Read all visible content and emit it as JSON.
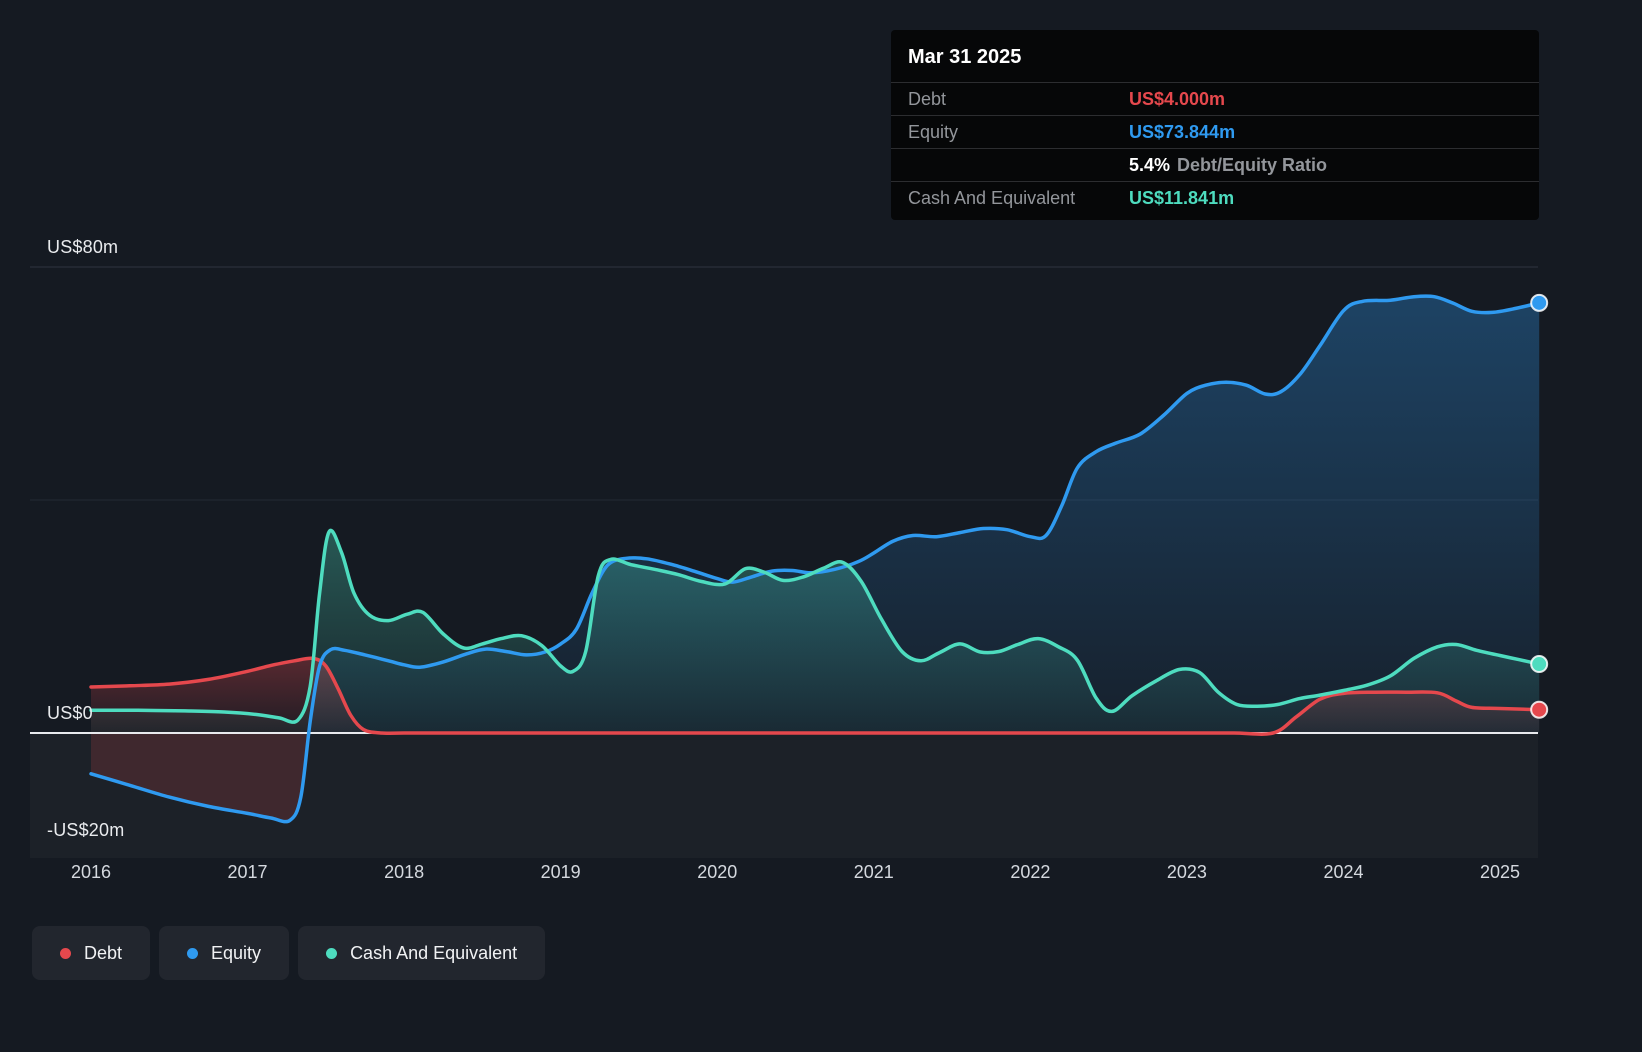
{
  "colors": {
    "background": "#151a22",
    "debt": "#e5484d",
    "equity": "#2f9af0",
    "cash": "#4edcbf",
    "negative_equity_fill": "#e5484d",
    "zero_line": "#e8eaee",
    "gridline_major": "#2e3440",
    "gridline_minor": "#232934",
    "tooltip_bg": "#060708"
  },
  "tooltip": {
    "date": "Mar 31 2025",
    "debt_label": "Debt",
    "debt_value": "US$4.000m",
    "equity_label": "Equity",
    "equity_value": "US$73.844m",
    "ratio_value": "5.4%",
    "ratio_label": "Debt/Equity Ratio",
    "cash_label": "Cash And Equivalent",
    "cash_value": "US$11.841m"
  },
  "chart_data": {
    "type": "area",
    "unit": "US$m",
    "grid": "horizontal",
    "legend_position": "bottom-left",
    "x_ticks": [
      2016,
      2017,
      2018,
      2019,
      2020,
      2021,
      2022,
      2023,
      2024,
      2025
    ],
    "x_range": [
      2016,
      2025.25
    ],
    "ylim": [
      -25,
      85
    ],
    "y_gridlines_major": [
      80
    ],
    "y_gridlines_minor": [
      40
    ],
    "y_labels": [
      {
        "value": 80,
        "text": "US$80m"
      },
      {
        "value": 0,
        "text": "US$0"
      },
      {
        "value": -20,
        "text": "-US$20m"
      }
    ],
    "series": [
      {
        "name": "Debt",
        "color": "#e5484d",
        "points": [
          [
            2016,
            7.9
          ],
          [
            2016.25,
            8.1
          ],
          [
            2016.5,
            8.4
          ],
          [
            2016.75,
            9.2
          ],
          [
            2017,
            10.6
          ],
          [
            2017.15,
            11.6
          ],
          [
            2017.3,
            12.4
          ],
          [
            2017.42,
            12.8
          ],
          [
            2017.5,
            11.5
          ],
          [
            2017.58,
            7.5
          ],
          [
            2017.66,
            3
          ],
          [
            2017.74,
            0.6
          ],
          [
            2017.85,
            0
          ],
          [
            2018,
            0
          ],
          [
            2018.5,
            0
          ],
          [
            2019,
            0
          ],
          [
            2019.5,
            0
          ],
          [
            2020,
            0
          ],
          [
            2020.5,
            0
          ],
          [
            2021,
            0
          ],
          [
            2021.5,
            0
          ],
          [
            2022,
            0
          ],
          [
            2022.5,
            0
          ],
          [
            2023,
            0
          ],
          [
            2023.3,
            0
          ],
          [
            2023.55,
            0
          ],
          [
            2023.7,
            2.8
          ],
          [
            2023.85,
            5.8
          ],
          [
            2024,
            6.8
          ],
          [
            2024.2,
            7
          ],
          [
            2024.4,
            7
          ],
          [
            2024.6,
            6.9
          ],
          [
            2024.72,
            5.5
          ],
          [
            2024.82,
            4.4
          ],
          [
            2025,
            4.2
          ],
          [
            2025.25,
            4
          ]
        ]
      },
      {
        "name": "Equity",
        "color": "#2f9af0",
        "points": [
          [
            2016,
            -7
          ],
          [
            2016.25,
            -9
          ],
          [
            2016.5,
            -11
          ],
          [
            2016.75,
            -12.6
          ],
          [
            2017,
            -13.8
          ],
          [
            2017.15,
            -14.6
          ],
          [
            2017.27,
            -15
          ],
          [
            2017.34,
            -11
          ],
          [
            2017.4,
            2
          ],
          [
            2017.46,
            11.5
          ],
          [
            2017.53,
            14.3
          ],
          [
            2017.62,
            14.2
          ],
          [
            2017.75,
            13.4
          ],
          [
            2017.9,
            12.4
          ],
          [
            2018,
            11.7
          ],
          [
            2018.1,
            11.3
          ],
          [
            2018.25,
            12.2
          ],
          [
            2018.4,
            13.6
          ],
          [
            2018.52,
            14.4
          ],
          [
            2018.65,
            14
          ],
          [
            2018.78,
            13.4
          ],
          [
            2018.9,
            13.9
          ],
          [
            2019,
            15.3
          ],
          [
            2019.1,
            17.8
          ],
          [
            2019.2,
            24
          ],
          [
            2019.3,
            28.8
          ],
          [
            2019.42,
            30
          ],
          [
            2019.55,
            29.9
          ],
          [
            2019.7,
            29
          ],
          [
            2019.85,
            27.8
          ],
          [
            2020,
            26.5
          ],
          [
            2020.1,
            25.9
          ],
          [
            2020.22,
            26.8
          ],
          [
            2020.35,
            27.8
          ],
          [
            2020.48,
            27.9
          ],
          [
            2020.6,
            27.5
          ],
          [
            2020.75,
            28.1
          ],
          [
            2020.9,
            29.4
          ],
          [
            2021,
            30.9
          ],
          [
            2021.12,
            32.9
          ],
          [
            2021.25,
            33.9
          ],
          [
            2021.4,
            33.7
          ],
          [
            2021.55,
            34.4
          ],
          [
            2021.7,
            35.1
          ],
          [
            2021.85,
            34.9
          ],
          [
            2022,
            33.7
          ],
          [
            2022.1,
            33.9
          ],
          [
            2022.2,
            39
          ],
          [
            2022.3,
            45.5
          ],
          [
            2022.42,
            48.3
          ],
          [
            2022.55,
            49.8
          ],
          [
            2022.7,
            51.3
          ],
          [
            2022.85,
            54.5
          ],
          [
            2023,
            58.3
          ],
          [
            2023.12,
            59.7
          ],
          [
            2023.25,
            60.2
          ],
          [
            2023.38,
            59.7
          ],
          [
            2023.5,
            58.2
          ],
          [
            2023.6,
            58.6
          ],
          [
            2023.72,
            61.5
          ],
          [
            2023.85,
            66.5
          ],
          [
            2024,
            72.5
          ],
          [
            2024.12,
            74.1
          ],
          [
            2024.3,
            74.3
          ],
          [
            2024.45,
            74.9
          ],
          [
            2024.58,
            74.9
          ],
          [
            2024.7,
            73.8
          ],
          [
            2024.82,
            72.4
          ],
          [
            2024.95,
            72.2
          ],
          [
            2025.1,
            72.9
          ],
          [
            2025.25,
            73.844
          ]
        ]
      },
      {
        "name": "Cash And Equivalent",
        "color": "#4edcbf",
        "points": [
          [
            2016,
            3.9
          ],
          [
            2016.3,
            3.9
          ],
          [
            2016.6,
            3.8
          ],
          [
            2016.85,
            3.6
          ],
          [
            2017.05,
            3.2
          ],
          [
            2017.2,
            2.6
          ],
          [
            2017.32,
            2.2
          ],
          [
            2017.4,
            8
          ],
          [
            2017.46,
            24
          ],
          [
            2017.52,
            34.5
          ],
          [
            2017.6,
            31
          ],
          [
            2017.68,
            24
          ],
          [
            2017.78,
            20.2
          ],
          [
            2017.9,
            19.3
          ],
          [
            2018.02,
            20.4
          ],
          [
            2018.12,
            20.7
          ],
          [
            2018.25,
            17
          ],
          [
            2018.38,
            14.6
          ],
          [
            2018.5,
            15.3
          ],
          [
            2018.62,
            16.2
          ],
          [
            2018.75,
            16.7
          ],
          [
            2018.88,
            15
          ],
          [
            2019,
            11.5
          ],
          [
            2019.08,
            10.6
          ],
          [
            2019.16,
            14
          ],
          [
            2019.24,
            27
          ],
          [
            2019.32,
            29.8
          ],
          [
            2019.45,
            28.9
          ],
          [
            2019.6,
            28.1
          ],
          [
            2019.75,
            27.2
          ],
          [
            2019.9,
            26
          ],
          [
            2020.05,
            25.6
          ],
          [
            2020.18,
            28.2
          ],
          [
            2020.3,
            27.6
          ],
          [
            2020.42,
            26.2
          ],
          [
            2020.55,
            26.8
          ],
          [
            2020.68,
            28.3
          ],
          [
            2020.8,
            29.3
          ],
          [
            2020.92,
            26
          ],
          [
            2021.05,
            19.5
          ],
          [
            2021.18,
            14
          ],
          [
            2021.3,
            12.4
          ],
          [
            2021.42,
            13.8
          ],
          [
            2021.55,
            15.3
          ],
          [
            2021.68,
            13.9
          ],
          [
            2021.8,
            14
          ],
          [
            2021.92,
            15.2
          ],
          [
            2022.05,
            16.2
          ],
          [
            2022.18,
            14.8
          ],
          [
            2022.3,
            12.5
          ],
          [
            2022.42,
            6
          ],
          [
            2022.52,
            3.7
          ],
          [
            2022.65,
            6.4
          ],
          [
            2022.8,
            8.9
          ],
          [
            2022.95,
            10.9
          ],
          [
            2023.08,
            10.4
          ],
          [
            2023.2,
            7
          ],
          [
            2023.32,
            4.9
          ],
          [
            2023.45,
            4.6
          ],
          [
            2023.58,
            4.9
          ],
          [
            2023.72,
            5.9
          ],
          [
            2023.85,
            6.5
          ],
          [
            2024,
            7.3
          ],
          [
            2024.15,
            8.2
          ],
          [
            2024.3,
            9.8
          ],
          [
            2024.45,
            12.8
          ],
          [
            2024.6,
            14.8
          ],
          [
            2024.72,
            15.2
          ],
          [
            2024.85,
            14.2
          ],
          [
            2025,
            13.3
          ],
          [
            2025.12,
            12.6
          ],
          [
            2025.25,
            11.841
          ]
        ]
      }
    ]
  }
}
